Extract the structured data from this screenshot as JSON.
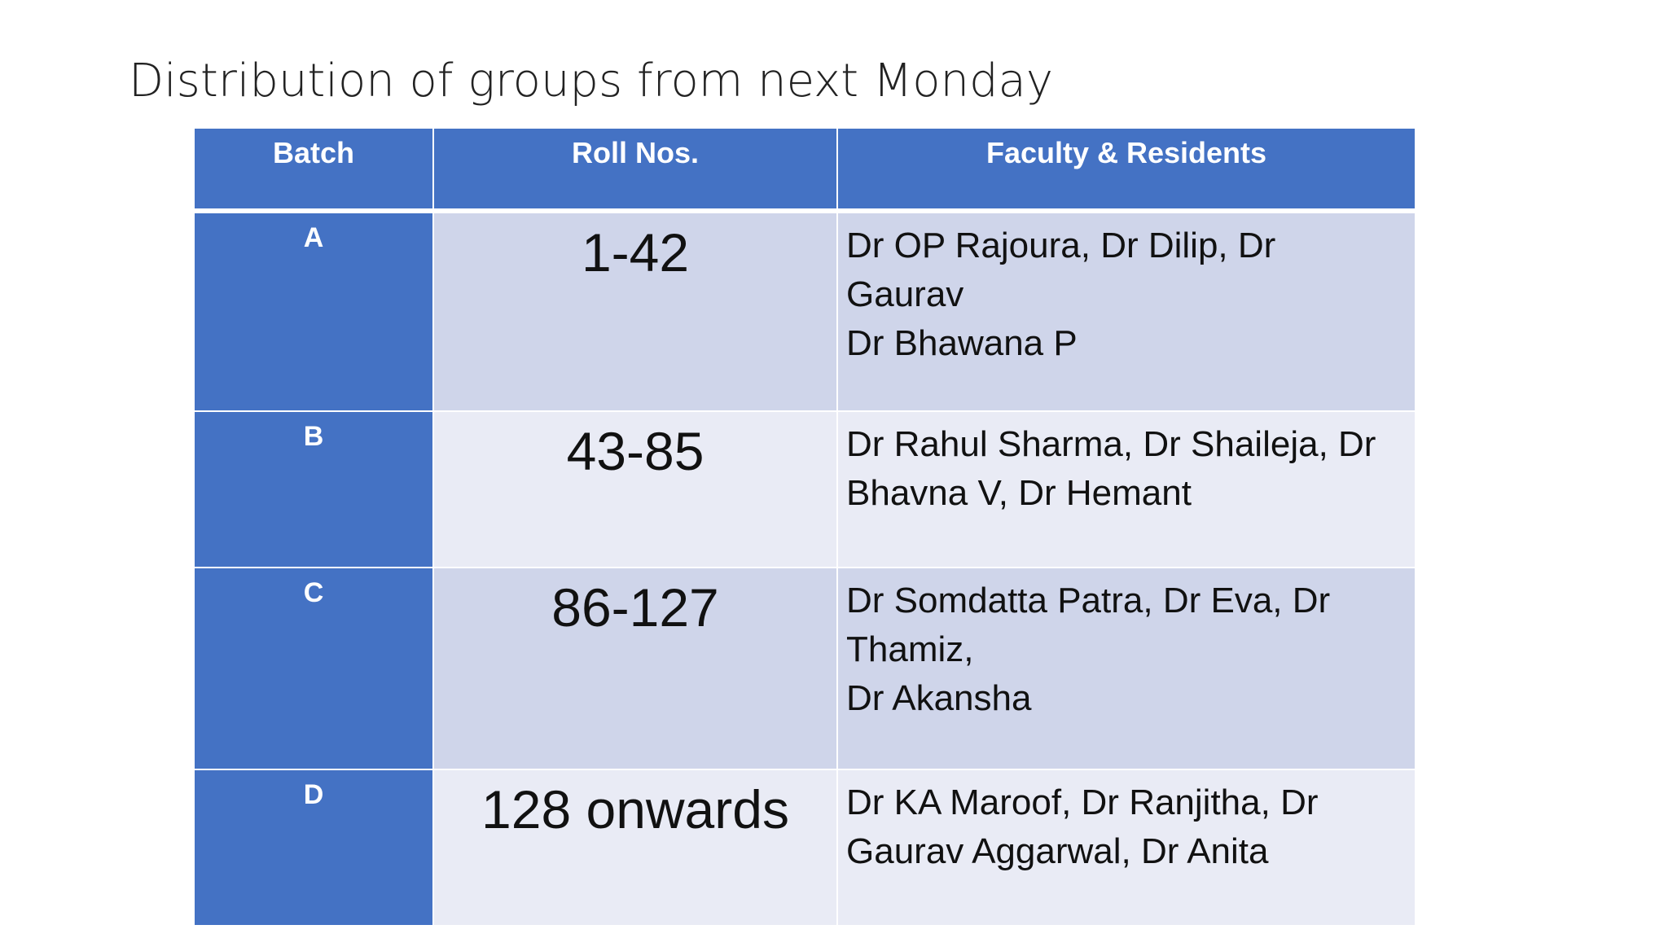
{
  "slide": {
    "title": "Distribution of groups from next Monday"
  },
  "table": {
    "headers": [
      "Batch",
      "Roll Nos.",
      "Faculty & Residents"
    ],
    "rows": [
      {
        "batch": "A",
        "roll": "1-42",
        "faculty_lines": [
          "Dr OP Rajoura,  Dr Dilip,  Dr",
          "Gaurav",
          "Dr Bhawana P"
        ]
      },
      {
        "batch": "B",
        "roll": "43-85",
        "faculty_lines": [
          "Dr Rahul Sharma, Dr Shaileja, Dr",
          "Bhavna V,  Dr Hemant"
        ]
      },
      {
        "batch": "C",
        "roll": "86-127",
        "faculty_lines": [
          "Dr Somdatta Patra, Dr Eva, Dr",
          "Thamiz,",
          "Dr Akansha"
        ]
      },
      {
        "batch": "D",
        "roll": "128 onwards",
        "faculty_lines": [
          "Dr KA Maroof, Dr Ranjitha, Dr",
          "Gaurav Aggarwal, Dr Anita"
        ]
      }
    ]
  },
  "colors": {
    "header_bg": "#4472c4",
    "row_band_dark": "#cfd5ea",
    "row_band_light": "#e9ebf5"
  }
}
